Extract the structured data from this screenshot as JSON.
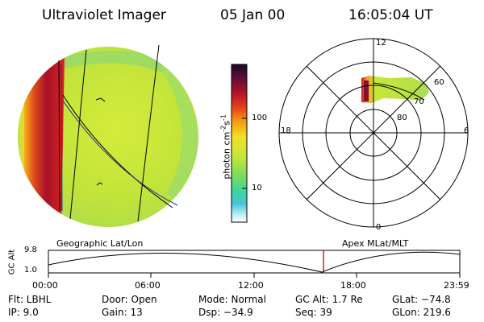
{
  "header": {
    "instrument": "Ultraviolet Imager",
    "date": "05 Jan 00",
    "time": "16:05:04 UT"
  },
  "colors": {
    "bar_high": "#5a0f36",
    "bar_mid": "#f59a12",
    "bar_low": "#ffffff",
    "globe_fill": "#c7e63b",
    "aurora": "#c81624",
    "marker": "#c00000"
  },
  "colorbar": {
    "unit": "photon cm",
    "sup1": "-2",
    "s": "s",
    "sup2": "-1",
    "tick_100": "100",
    "tick_10": "10"
  },
  "left_panel": {
    "caption": "Geographic Lat/Lon"
  },
  "right_panel": {
    "caption": "Apex MLat/MLT",
    "mlt_labels": {
      "top": "12",
      "left": "18",
      "right": "6",
      "bottom": "0"
    },
    "lat_labels": [
      "60",
      "70",
      "80"
    ]
  },
  "timeline": {
    "axis_label": "GC Alt",
    "y_top": "9.8",
    "y_bottom": "1.0",
    "x_ticks": [
      "00:00",
      "06:00",
      "12:00",
      "18:00",
      "23:59"
    ]
  },
  "info": {
    "flt": "Flt: LBHL",
    "ip": "IP: 9.0",
    "door": "Door: Open",
    "gain": "Gain: 13",
    "mode": "Mode: Normal",
    "dsp": "Dsp: −34.9",
    "gcalt": "GC Alt: 1.7 Re",
    "seq": "Seq: 39",
    "glat": "GLat: −74.8",
    "glon": "GLon: 219.6"
  }
}
